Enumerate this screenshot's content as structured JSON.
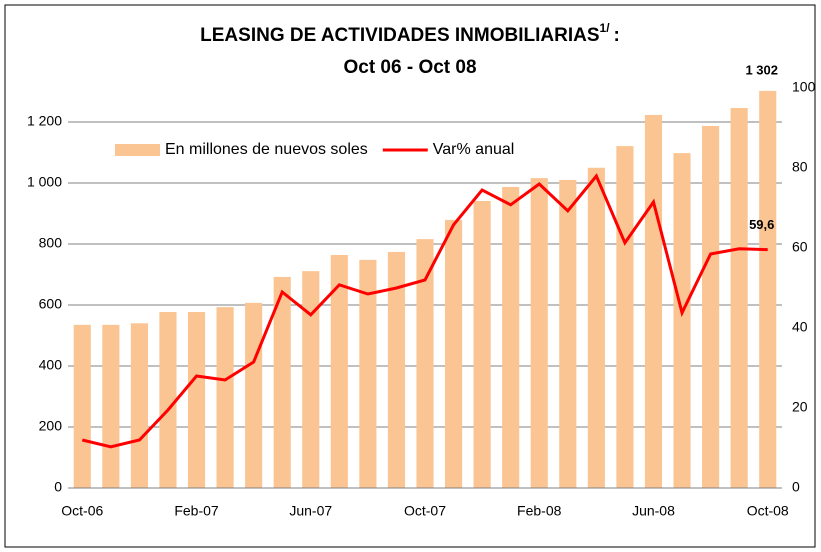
{
  "chart_data": {
    "type": "bar_line",
    "title": "LEASING DE ACTIVIDADES INMOBILIARIAS",
    "title_superscript": "1/",
    "title_suffix": ":",
    "subtitle": "Oct 06 - Oct 08",
    "categories": [
      "Oct-06",
      null,
      null,
      null,
      "Feb-07",
      null,
      null,
      null,
      "Jun-07",
      null,
      null,
      null,
      "Oct-07",
      null,
      null,
      null,
      "Feb-08",
      null,
      null,
      null,
      "Jun-08",
      null,
      null,
      null,
      "Oct-08"
    ],
    "series": [
      {
        "name": "En millones de nuevos soles",
        "color": "#fbc593",
        "kind": "bar",
        "values": [
          535,
          535,
          540,
          577,
          577,
          593,
          607,
          692,
          711,
          764,
          748,
          774,
          816,
          879,
          941,
          987,
          1016,
          1010,
          1050,
          1121,
          1223,
          1098,
          1187,
          1246,
          1302
        ],
        "value_labels": [
          null,
          null,
          null,
          null,
          null,
          null,
          null,
          null,
          null,
          null,
          null,
          null,
          null,
          null,
          null,
          null,
          null,
          null,
          null,
          null,
          null,
          null,
          null,
          null,
          "1 302"
        ]
      },
      {
        "name": "Var% anual",
        "color": "#ff0000",
        "kind": "line",
        "axis": "y2",
        "values": [
          12,
          10.3,
          12,
          19.5,
          28,
          27,
          31.5,
          49,
          43.3,
          50.8,
          48.5,
          50,
          52,
          65.8,
          74.5,
          70.8,
          76,
          69.3,
          78,
          61.3,
          71.5,
          43.8,
          58.5,
          59.8,
          59.6
        ],
        "value_labels": [
          null,
          null,
          null,
          null,
          null,
          null,
          null,
          null,
          null,
          null,
          null,
          null,
          null,
          null,
          null,
          null,
          null,
          null,
          null,
          null,
          null,
          null,
          null,
          null,
          "59,6"
        ]
      }
    ],
    "ylim": [
      0,
      1200
    ],
    "yticks": [
      0,
      200,
      400,
      600,
      800,
      {
        "value": 1000,
        "label": "1 000"
      },
      {
        "value": 1200,
        "label": "1 200"
      }
    ],
    "y2lim": [
      0,
      100
    ],
    "y2ticks": [
      0,
      20,
      40,
      60,
      80,
      100
    ],
    "grid": true,
    "legend": "top-left"
  }
}
